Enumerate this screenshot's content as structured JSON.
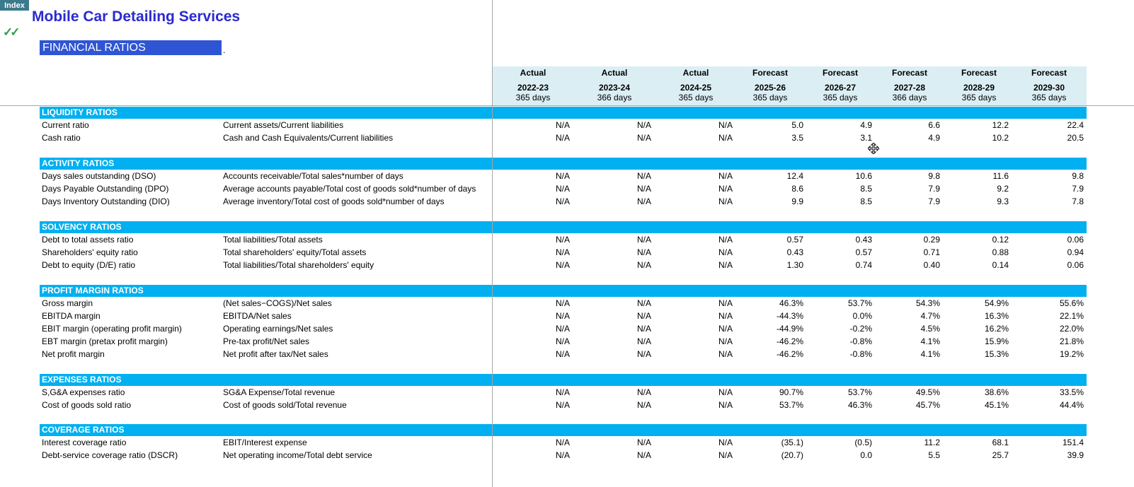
{
  "index_button": "Index",
  "checkmarks": "✓✓",
  "company_title": "Mobile Car Detailing Services",
  "section_title": "FINANCIAL RATIOS",
  "period_mark": ".",
  "columns": [
    {
      "type": "Actual",
      "year": "2022-23",
      "days": "365 days"
    },
    {
      "type": "Actual",
      "year": "2023-24",
      "days": "366 days"
    },
    {
      "type": "Actual",
      "year": "2024-25",
      "days": "365 days"
    },
    {
      "type": "Forecast",
      "year": "2025-26",
      "days": "365 days"
    },
    {
      "type": "Forecast",
      "year": "2026-27",
      "days": "365 days"
    },
    {
      "type": "Forecast",
      "year": "2027-28",
      "days": "366 days"
    },
    {
      "type": "Forecast",
      "year": "2028-29",
      "days": "365 days"
    },
    {
      "type": "Forecast",
      "year": "2029-30",
      "days": "365 days"
    }
  ],
  "sections": [
    {
      "title": "LIQUIDITY RATIOS",
      "rows": [
        {
          "label": "Current ratio",
          "formula": "Current assets/Current liabilities",
          "values": [
            "N/A",
            "N/A",
            "N/A",
            "5.0",
            "4.9",
            "6.6",
            "12.2",
            "22.4"
          ]
        },
        {
          "label": "Cash ratio",
          "formula": "Cash and Cash Equivalents/Current liabilities",
          "values": [
            "N/A",
            "N/A",
            "N/A",
            "3.5",
            "3.1",
            "4.9",
            "10.2",
            "20.5"
          ]
        }
      ]
    },
    {
      "title": "ACTIVITY RATIOS",
      "rows": [
        {
          "label": "Days sales outstanding (DSO)",
          "formula": "Accounts receivable/Total sales*number of days",
          "values": [
            "N/A",
            "N/A",
            "N/A",
            "12.4",
            "10.6",
            "9.8",
            "11.6",
            "9.8"
          ]
        },
        {
          "label": "Days Payable Outstanding (DPO)",
          "formula": "Average accounts payable/Total cost of goods sold*number of days",
          "values": [
            "N/A",
            "N/A",
            "N/A",
            "8.6",
            "8.5",
            "7.9",
            "9.2",
            "7.9"
          ]
        },
        {
          "label": "Days Inventory Outstanding (DIO)",
          "formula": "Average inventory/Total cost of goods sold*number of days",
          "values": [
            "N/A",
            "N/A",
            "N/A",
            "9.9",
            "8.5",
            "7.9",
            "9.3",
            "7.8"
          ]
        }
      ]
    },
    {
      "title": "SOLVENCY RATIOS",
      "rows": [
        {
          "label": "Debt to total assets ratio",
          "formula": "Total liabilities/Total assets",
          "values": [
            "N/A",
            "N/A",
            "N/A",
            "0.57",
            "0.43",
            "0.29",
            "0.12",
            "0.06"
          ]
        },
        {
          "label": "Shareholders' equity ratio",
          "formula": "Total shareholders' equity/Total assets",
          "values": [
            "N/A",
            "N/A",
            "N/A",
            "0.43",
            "0.57",
            "0.71",
            "0.88",
            "0.94"
          ]
        },
        {
          "label": "Debt to equity (D/E) ratio",
          "formula": "Total liabilities/Total shareholders' equity",
          "values": [
            "N/A",
            "N/A",
            "N/A",
            "1.30",
            "0.74",
            "0.40",
            "0.14",
            "0.06"
          ]
        }
      ]
    },
    {
      "title": "PROFIT MARGIN RATIOS",
      "rows": [
        {
          "label": "Gross margin",
          "formula": "(Net sales−COGS)/Net sales",
          "values": [
            "N/A",
            "N/A",
            "N/A",
            "46.3%",
            "53.7%",
            "54.3%",
            "54.9%",
            "55.6%"
          ]
        },
        {
          "label": "EBITDA margin",
          "formula": "EBITDA/Net sales",
          "values": [
            "N/A",
            "N/A",
            "N/A",
            "-44.3%",
            "0.0%",
            "4.7%",
            "16.3%",
            "22.1%"
          ]
        },
        {
          "label": "EBIT margin (operating profit margin)",
          "formula": "Operating earnings/Net sales",
          "values": [
            "N/A",
            "N/A",
            "N/A",
            "-44.9%",
            "-0.2%",
            "4.5%",
            "16.2%",
            "22.0%"
          ]
        },
        {
          "label": "EBT margin (pretax profit margin)",
          "formula": "Pre-tax profit/Net sales",
          "values": [
            "N/A",
            "N/A",
            "N/A",
            "-46.2%",
            "-0.8%",
            "4.1%",
            "15.9%",
            "21.8%"
          ]
        },
        {
          "label": "Net profit margin",
          "formula": "Net profit after tax/Net sales",
          "values": [
            "N/A",
            "N/A",
            "N/A",
            "-46.2%",
            "-0.8%",
            "4.1%",
            "15.3%",
            "19.2%"
          ]
        }
      ]
    },
    {
      "title": "EXPENSES RATIOS",
      "rows": [
        {
          "label": "S,G&A expenses ratio",
          "formula": "SG&A Expense/Total revenue",
          "values": [
            "N/A",
            "N/A",
            "N/A",
            "90.7%",
            "53.7%",
            "49.5%",
            "38.6%",
            "33.5%"
          ]
        },
        {
          "label": "Cost of goods sold ratio",
          "formula": "Cost of goods sold/Total revenue",
          "values": [
            "N/A",
            "N/A",
            "N/A",
            "53.7%",
            "46.3%",
            "45.7%",
            "45.1%",
            "44.4%"
          ]
        }
      ]
    },
    {
      "title": "COVERAGE RATIOS",
      "rows": [
        {
          "label": "Interest coverage ratio",
          "formula": "EBIT/Interest expense",
          "values": [
            "N/A",
            "N/A",
            "N/A",
            "(35.1)",
            "(0.5)",
            "11.2",
            "68.1",
            "151.4"
          ]
        },
        {
          "label": "Debt-service coverage ratio (DSCR)",
          "formula": "Net operating income/Total debt service",
          "values": [
            "N/A",
            "N/A",
            "N/A",
            "(20.7)",
            "0.0",
            "5.5",
            "25.7",
            "39.9"
          ]
        }
      ]
    }
  ],
  "colors": {
    "section_band": "#00b0f0",
    "title_band": "#2f55d4",
    "header_band": "#dbeef3",
    "title_text": "#2a2ad0",
    "checkmark": "#2e9e4a",
    "index_button": "#3b7a8c"
  },
  "icons": {
    "cursor": "move-cursor-icon"
  }
}
